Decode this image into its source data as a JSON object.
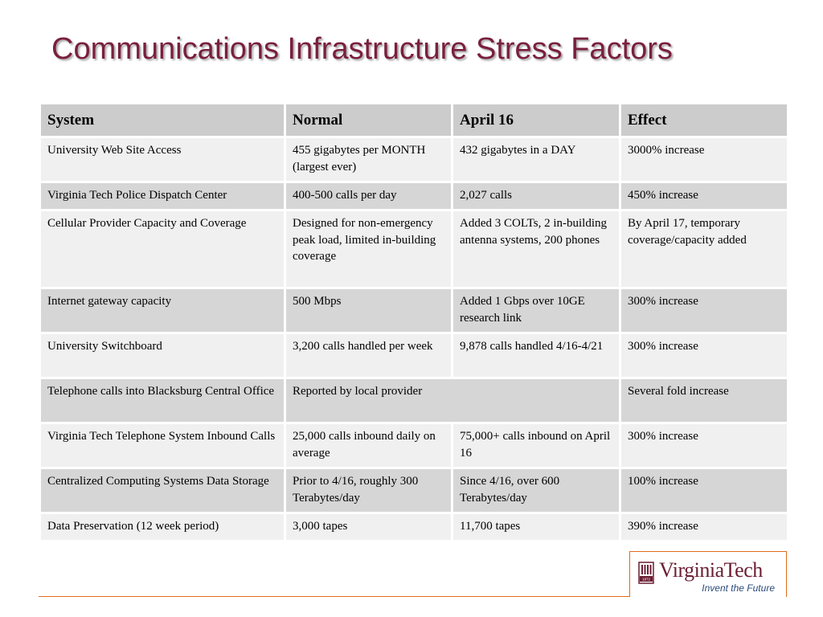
{
  "slide": {
    "title": "Communications Infrastructure Stress Factors"
  },
  "table": {
    "headers": [
      "System",
      "Normal",
      "April 16",
      "Effect"
    ],
    "rows": [
      {
        "system": "University Web Site Access",
        "normal": "455 gigabytes per MONTH (largest ever)",
        "april16": "432 gigabytes in a DAY",
        "effect": "3000% increase"
      },
      {
        "system": "Virginia Tech Police Dispatch Center",
        "normal": "400-500 calls per day",
        "april16": "2,027 calls",
        "effect": "450% increase"
      },
      {
        "system": "Cellular Provider Capacity and Coverage",
        "normal": "Designed for non-emergency peak load, limited in-building coverage",
        "april16": "Added 3 COLTs, 2 in-building antenna systems, 200 phones",
        "effect": "By April 17, temporary coverage/capacity added"
      },
      {
        "system": "Internet gateway capacity",
        "normal": "500 Mbps",
        "april16": "Added 1 Gbps over 10GE research link",
        "effect": "300% increase"
      },
      {
        "system": "University Switchboard",
        "normal": "3,200 calls handled per week",
        "april16": "9,878 calls handled 4/16-4/21",
        "effect": "300% increase"
      },
      {
        "system": "Telephone calls into Blacksburg Central Office",
        "normal": "Reported by local provider",
        "april16": "",
        "effect": "Several fold increase"
      },
      {
        "system": "Virginia Tech Telephone System Inbound Calls",
        "normal": "25,000 calls inbound daily on average",
        "april16": "75,000+ calls inbound on April 16",
        "effect": "300% increase"
      },
      {
        "system": "Centralized Computing Systems Data Storage",
        "normal": "Prior to 4/16, roughly 300 Terabytes/day",
        "april16": "Since 4/16, over 600 Terabytes/day",
        "effect": "100% increase"
      },
      {
        "system": "Data Preservation (12 week period)",
        "normal": "3,000 tapes",
        "april16": "11,700 tapes",
        "effect": "390% increase"
      }
    ]
  },
  "logo": {
    "name": "VirginiaTech",
    "tagline": "Invent the Future",
    "emblem_year": "1872"
  },
  "colors": {
    "title": "#7a1f3d",
    "header_bg": "#cccccc",
    "row_light": "#f0f0f0",
    "row_dark": "#d6d6d6",
    "accent_rule": "#e06c1c",
    "logo_maroon": "#6b1f33",
    "tagline_blue": "#2b4a7a"
  }
}
